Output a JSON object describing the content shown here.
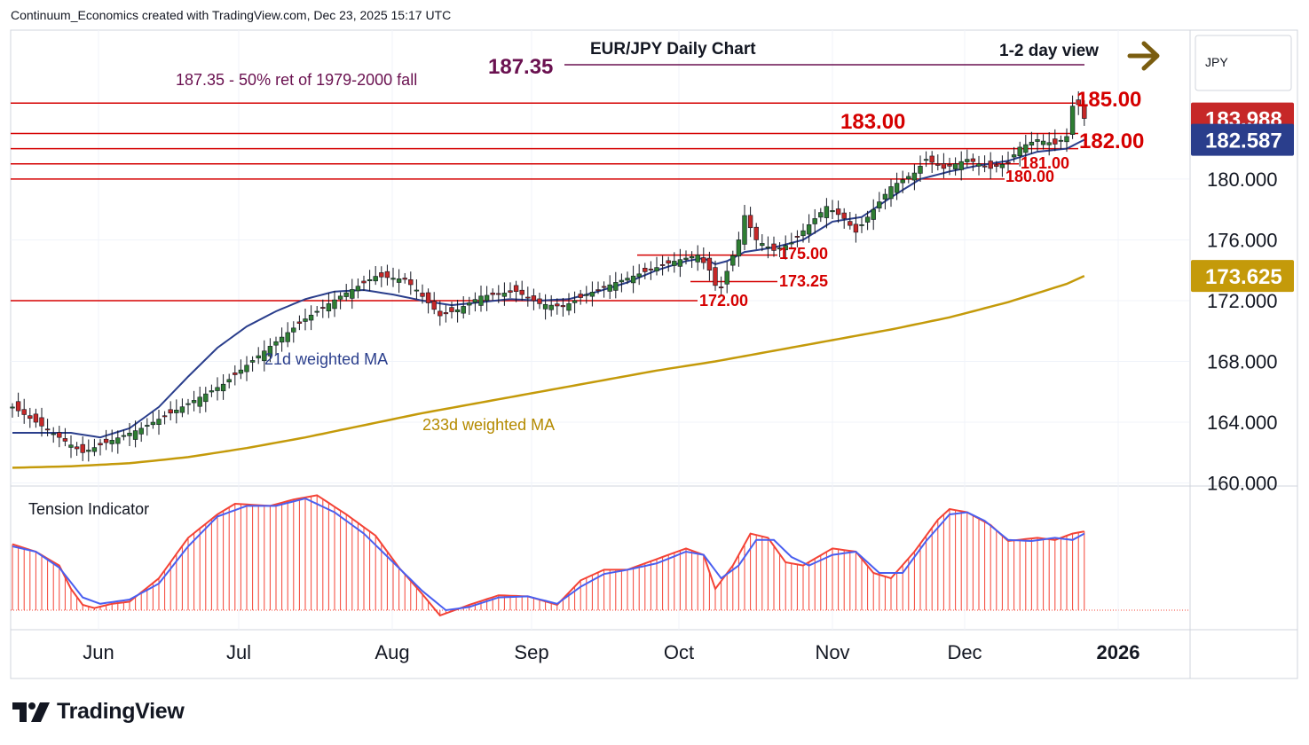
{
  "header": {
    "credit": "Continuum_Economics created with TradingView.com, Dec 23, 2025 15:17 UTC"
  },
  "brand": {
    "name": "TradingView"
  },
  "colors": {
    "up": "#2e7d32",
    "down": "#c62828",
    "level": "#d50000",
    "ma21": "#2a3e8c",
    "ma233": "#c49a0a",
    "target": "#6a1150",
    "arrow": "#7a5d10",
    "tension": "#f44336"
  },
  "chart_data": [
    {
      "type": "candlestick",
      "title": "EUR/JPY Daily Chart",
      "view_label": "1-2 day view",
      "view_arrow": "right-arrow",
      "currency": "JPY",
      "y_axis_labels": [
        "180.000",
        "176.000",
        "172.000",
        "168.000",
        "164.000",
        "160.000"
      ],
      "y_axis_values": [
        180,
        176,
        172,
        168,
        164,
        160
      ],
      "ylim": [
        159.8,
        189.8
      ],
      "x_axis_labels": [
        "Jun",
        "Jul",
        "Aug",
        "Sep",
        "Oct",
        "Nov",
        "Dec",
        "2026"
      ],
      "price_tags": [
        {
          "label": "183.988",
          "value": 183.988,
          "kind": "last"
        },
        {
          "label": "182.587",
          "value": 182.587,
          "kind": "ma21"
        },
        {
          "label": "173.625",
          "value": 173.625,
          "kind": "ma233"
        }
      ],
      "target": {
        "label": "187.35",
        "value": 187.35,
        "note": "187.35 - 50% ret of 1979-2000 fall"
      },
      "levels": [
        {
          "label": "185.00",
          "value": 185.0,
          "span": "full"
        },
        {
          "label": "183.00",
          "value": 183.0,
          "span": "full"
        },
        {
          "label": "182.00",
          "value": 182.0,
          "span": "full"
        },
        {
          "label": "181.00",
          "value": 181.0,
          "span": "full"
        },
        {
          "label": "180.00",
          "value": 180.0,
          "span": "full"
        },
        {
          "label": "175.00",
          "value": 175.0,
          "span": "short"
        },
        {
          "label": "173.25",
          "value": 173.25,
          "span": "short"
        },
        {
          "label": "172.00",
          "value": 172.0,
          "span": "full"
        }
      ],
      "annotations": {
        "ma21": "21d weighted MA",
        "ma233": "233d weighted MA"
      },
      "waypoints": [
        [
          0,
          165.0
        ],
        [
          8,
          163.0
        ],
        [
          12,
          162.0
        ],
        [
          15,
          162.5
        ],
        [
          22,
          163.6
        ],
        [
          28,
          164.8
        ],
        [
          36,
          166.5
        ],
        [
          44,
          169.0
        ],
        [
          50,
          170.8
        ],
        [
          56,
          172.3
        ],
        [
          62,
          173.6
        ],
        [
          67,
          173.4
        ],
        [
          69,
          172.7
        ],
        [
          73,
          171.0
        ],
        [
          76,
          171.4
        ],
        [
          80,
          172.3
        ],
        [
          86,
          172.6
        ],
        [
          90,
          171.8
        ],
        [
          94,
          171.6
        ],
        [
          98,
          172.4
        ],
        [
          103,
          173.2
        ],
        [
          108,
          173.9
        ],
        [
          113,
          174.6
        ],
        [
          117,
          175.0
        ],
        [
          119,
          174.0
        ],
        [
          120,
          173.0
        ],
        [
          121,
          172.9
        ],
        [
          124,
          176.0
        ],
        [
          125,
          177.6
        ],
        [
          127,
          176.0
        ],
        [
          130,
          175.3
        ],
        [
          133,
          175.8
        ],
        [
          136,
          177.0
        ],
        [
          139,
          178.2
        ],
        [
          142,
          177.4
        ],
        [
          144,
          176.5
        ],
        [
          147,
          178.0
        ],
        [
          150,
          179.5
        ],
        [
          154,
          180.4
        ],
        [
          156,
          181.3
        ],
        [
          159,
          180.7
        ],
        [
          163,
          181.3
        ],
        [
          167,
          180.7
        ],
        [
          170,
          181.1
        ],
        [
          172,
          182.1
        ],
        [
          175,
          182.6
        ],
        [
          178,
          182.3
        ],
        [
          180,
          182.8
        ],
        [
          181,
          184.8
        ],
        [
          182,
          184.9
        ],
        [
          183,
          183.988
        ]
      ],
      "ma21_points": [
        [
          0,
          163.3
        ],
        [
          10,
          163.3
        ],
        [
          15,
          163.0
        ],
        [
          20,
          163.6
        ],
        [
          25,
          165.0
        ],
        [
          30,
          167.0
        ],
        [
          35,
          168.9
        ],
        [
          40,
          170.3
        ],
        [
          45,
          171.3
        ],
        [
          50,
          172.1
        ],
        [
          55,
          172.6
        ],
        [
          60,
          172.7
        ],
        [
          65,
          172.4
        ],
        [
          70,
          172.0
        ],
        [
          75,
          171.7
        ],
        [
          80,
          171.9
        ],
        [
          85,
          172.1
        ],
        [
          90,
          172.0
        ],
        [
          95,
          172.1
        ],
        [
          100,
          172.6
        ],
        [
          105,
          173.2
        ],
        [
          110,
          174.0
        ],
        [
          115,
          174.6
        ],
        [
          118,
          174.8
        ],
        [
          120,
          174.4
        ],
        [
          122,
          174.6
        ],
        [
          125,
          175.2
        ],
        [
          130,
          175.5
        ],
        [
          135,
          176.0
        ],
        [
          140,
          177.2
        ],
        [
          145,
          177.5
        ],
        [
          150,
          178.8
        ],
        [
          155,
          180.0
        ],
        [
          160,
          180.5
        ],
        [
          165,
          180.9
        ],
        [
          170,
          181.2
        ],
        [
          175,
          181.8
        ],
        [
          180,
          182.0
        ],
        [
          183,
          182.587
        ]
      ],
      "ma233_points": [
        [
          0,
          161.0
        ],
        [
          10,
          161.1
        ],
        [
          20,
          161.3
        ],
        [
          30,
          161.7
        ],
        [
          40,
          162.3
        ],
        [
          50,
          163.0
        ],
        [
          60,
          163.8
        ],
        [
          70,
          164.6
        ],
        [
          80,
          165.3
        ],
        [
          90,
          166.0
        ],
        [
          100,
          166.7
        ],
        [
          110,
          167.4
        ],
        [
          115,
          167.7
        ],
        [
          120,
          168.0
        ],
        [
          130,
          168.7
        ],
        [
          140,
          169.4
        ],
        [
          150,
          170.1
        ],
        [
          160,
          170.9
        ],
        [
          170,
          171.9
        ],
        [
          180,
          173.1
        ],
        [
          183,
          173.625
        ]
      ]
    },
    {
      "type": "bar",
      "title": "Tension Indicator",
      "bar_points": [
        [
          0,
          0.62
        ],
        [
          4,
          0.55
        ],
        [
          8,
          0.42
        ],
        [
          10,
          0.2
        ],
        [
          12,
          0.05
        ],
        [
          14,
          0.02
        ],
        [
          17,
          0.06
        ],
        [
          20,
          0.08
        ],
        [
          25,
          0.3
        ],
        [
          30,
          0.68
        ],
        [
          35,
          0.9
        ],
        [
          38,
          1.0
        ],
        [
          44,
          0.98
        ],
        [
          48,
          1.04
        ],
        [
          52,
          1.08
        ],
        [
          57,
          0.9
        ],
        [
          62,
          0.7
        ],
        [
          66,
          0.4
        ],
        [
          70,
          0.15
        ],
        [
          73,
          -0.05
        ],
        [
          78,
          0.05
        ],
        [
          83,
          0.14
        ],
        [
          88,
          0.13
        ],
        [
          93,
          0.05
        ],
        [
          97,
          0.28
        ],
        [
          101,
          0.38
        ],
        [
          105,
          0.38
        ],
        [
          110,
          0.48
        ],
        [
          115,
          0.58
        ],
        [
          118,
          0.52
        ],
        [
          120,
          0.2
        ],
        [
          123,
          0.42
        ],
        [
          126,
          0.72
        ],
        [
          129,
          0.68
        ],
        [
          132,
          0.45
        ],
        [
          135,
          0.42
        ],
        [
          140,
          0.58
        ],
        [
          144,
          0.55
        ],
        [
          147,
          0.35
        ],
        [
          150,
          0.3
        ],
        [
          154,
          0.55
        ],
        [
          158,
          0.85
        ],
        [
          160,
          0.95
        ],
        [
          163,
          0.92
        ],
        [
          167,
          0.8
        ],
        [
          170,
          0.65
        ],
        [
          175,
          0.68
        ],
        [
          178,
          0.66
        ],
        [
          181,
          0.72
        ],
        [
          183,
          0.74
        ]
      ],
      "line_points": [
        [
          0,
          0.6
        ],
        [
          4,
          0.55
        ],
        [
          8,
          0.4
        ],
        [
          12,
          0.12
        ],
        [
          15,
          0.06
        ],
        [
          20,
          0.1
        ],
        [
          25,
          0.25
        ],
        [
          30,
          0.6
        ],
        [
          35,
          0.88
        ],
        [
          40,
          0.98
        ],
        [
          45,
          0.98
        ],
        [
          50,
          1.05
        ],
        [
          55,
          0.92
        ],
        [
          60,
          0.72
        ],
        [
          65,
          0.45
        ],
        [
          70,
          0.18
        ],
        [
          74,
          0.0
        ],
        [
          78,
          0.03
        ],
        [
          83,
          0.12
        ],
        [
          88,
          0.13
        ],
        [
          93,
          0.06
        ],
        [
          97,
          0.22
        ],
        [
          101,
          0.34
        ],
        [
          105,
          0.38
        ],
        [
          110,
          0.44
        ],
        [
          115,
          0.55
        ],
        [
          118,
          0.52
        ],
        [
          121,
          0.3
        ],
        [
          124,
          0.42
        ],
        [
          127,
          0.66
        ],
        [
          130,
          0.66
        ],
        [
          133,
          0.5
        ],
        [
          136,
          0.42
        ],
        [
          140,
          0.52
        ],
        [
          144,
          0.55
        ],
        [
          148,
          0.35
        ],
        [
          152,
          0.35
        ],
        [
          156,
          0.65
        ],
        [
          160,
          0.9
        ],
        [
          163,
          0.92
        ],
        [
          166,
          0.84
        ],
        [
          170,
          0.66
        ],
        [
          174,
          0.65
        ],
        [
          178,
          0.68
        ],
        [
          181,
          0.66
        ],
        [
          183,
          0.72
        ]
      ]
    }
  ]
}
